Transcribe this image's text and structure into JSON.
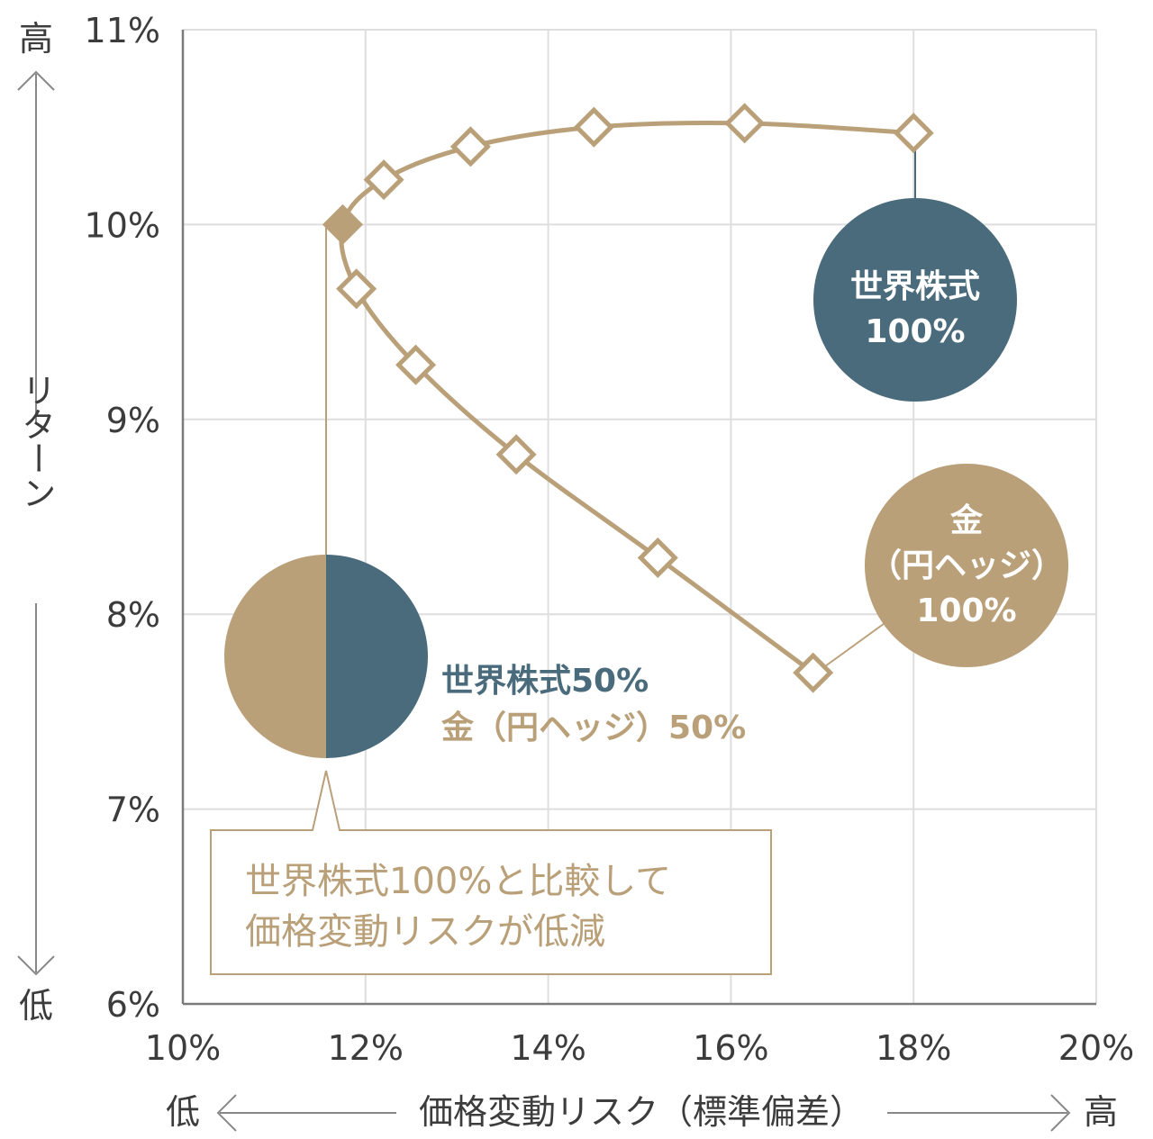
{
  "chart_data": {
    "type": "line",
    "title": "",
    "xlabel": "価格変動リスク（標準偏差）",
    "ylabel": "リターン",
    "x_ticks": [
      "10%",
      "12%",
      "14%",
      "16%",
      "18%",
      "20%"
    ],
    "y_ticks": [
      "6%",
      "7%",
      "8%",
      "9%",
      "10%",
      "11%"
    ],
    "xlim": [
      10,
      20
    ],
    "ylim": [
      6,
      11
    ],
    "grid": true,
    "axis_ends": {
      "low": "低",
      "high": "高"
    },
    "series": [
      {
        "marker": "diamond-open",
        "color": "#b9a079",
        "points": [
          {
            "x": 18.0,
            "y": 10.47
          },
          {
            "x": 16.15,
            "y": 10.52
          },
          {
            "x": 14.5,
            "y": 10.5
          },
          {
            "x": 13.15,
            "y": 10.4
          },
          {
            "x": 12.2,
            "y": 10.23
          },
          {
            "x": 11.75,
            "y": 10.0,
            "highlight": true
          },
          {
            "x": 11.9,
            "y": 9.67
          },
          {
            "x": 12.55,
            "y": 9.28
          },
          {
            "x": 13.65,
            "y": 8.82
          },
          {
            "x": 15.2,
            "y": 8.29
          },
          {
            "x": 16.9,
            "y": 7.7
          }
        ]
      }
    ],
    "annotations": {
      "stock100": {
        "line1": "世界株式",
        "line2": "100%",
        "color": "#4a6b7c"
      },
      "gold100": {
        "line1": "金",
        "line2": "（円ヘッジ）",
        "line3": "100%",
        "color": "#b9a079"
      },
      "mix": {
        "line1": "世界株式50%",
        "line2": "金（円ヘッジ）50%",
        "share_stock": 0.5,
        "share_gold": 0.5
      },
      "callout": {
        "line1": "世界株式100%と比較して",
        "line2": "価格変動リスクが低減"
      }
    }
  }
}
